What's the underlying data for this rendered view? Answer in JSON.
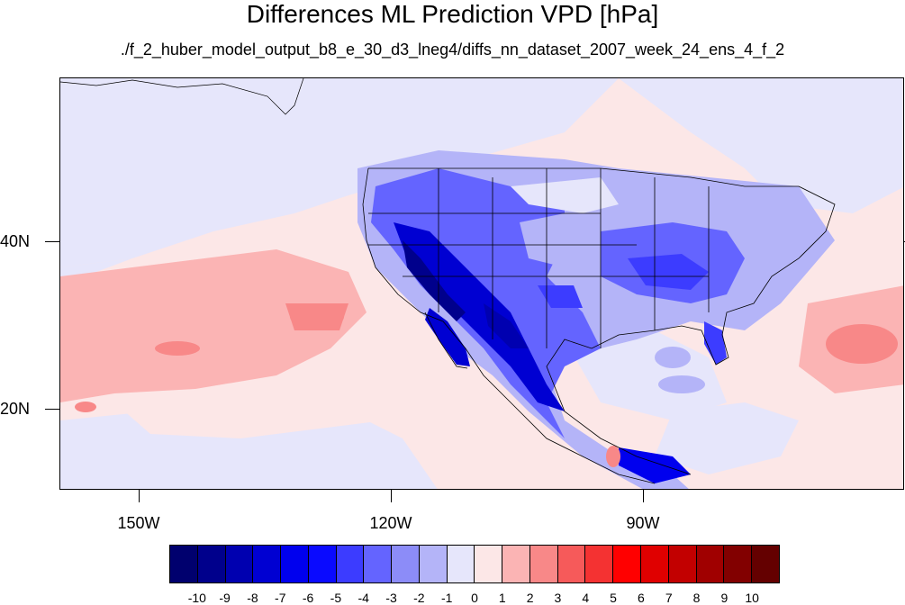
{
  "title": "Differences ML Prediction VPD [hPa]",
  "subtitle": "./f_2_huber_model_output_b8_e_30_d3_lneg4/diffs_nn_dataset_2007_week_24_ens_4_f_2",
  "lat_labels": [
    "40N",
    "20N"
  ],
  "lon_labels": [
    "150W",
    "120W",
    "90W"
  ],
  "colorbar": {
    "labels": [
      "-10",
      "-9",
      "-8",
      "-7",
      "-6",
      "-5",
      "-4",
      "-3",
      "-2",
      "-1",
      "0",
      "1",
      "2",
      "3",
      "4",
      "5",
      "6",
      "7",
      "8",
      "9",
      "10"
    ],
    "colors": [
      "#00006e",
      "#00008c",
      "#0000b0",
      "#0000d2",
      "#0000ee",
      "#0a0aff",
      "#3c3cff",
      "#6464ff",
      "#8c8cf8",
      "#b4b4f8",
      "#e6e6fb",
      "#fce7e7",
      "#fbb4b4",
      "#f88888",
      "#f65a5a",
      "#f43232",
      "#ff0000",
      "#e00000",
      "#c20000",
      "#a00000",
      "#820000",
      "#640000"
    ]
  }
}
